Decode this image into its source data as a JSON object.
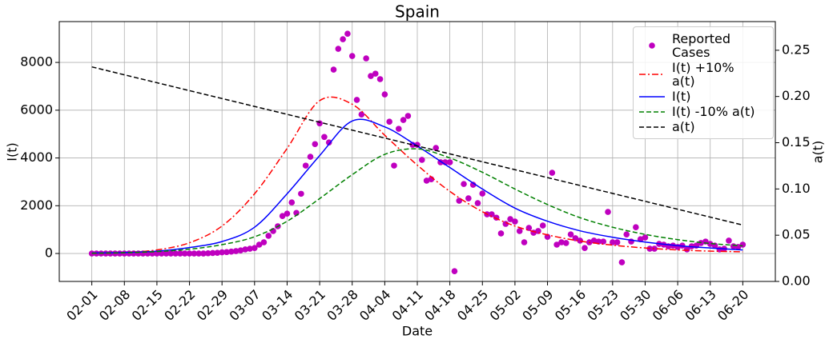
{
  "chart_data": {
    "type": "line",
    "title": "Spain",
    "xlabel": "Date",
    "ylabel": "I(t)",
    "y2label": "a(t)",
    "grid": true,
    "legend": "upper right",
    "x": [
      "02-01",
      "02-02",
      "02-03",
      "02-04",
      "02-05",
      "02-06",
      "02-07",
      "02-08",
      "02-09",
      "02-10",
      "02-11",
      "02-12",
      "02-13",
      "02-14",
      "02-15",
      "02-16",
      "02-17",
      "02-18",
      "02-19",
      "02-20",
      "02-21",
      "02-22",
      "02-23",
      "02-24",
      "02-25",
      "02-26",
      "02-27",
      "02-28",
      "02-29",
      "03-01",
      "03-02",
      "03-03",
      "03-04",
      "03-05",
      "03-06",
      "03-07",
      "03-08",
      "03-09",
      "03-10",
      "03-11",
      "03-12",
      "03-13",
      "03-14",
      "03-15",
      "03-16",
      "03-17",
      "03-18",
      "03-19",
      "03-20",
      "03-21",
      "03-22",
      "03-23",
      "03-24",
      "03-25",
      "03-26",
      "03-27",
      "03-28",
      "03-29",
      "03-30",
      "03-31",
      "04-01",
      "04-02",
      "04-03",
      "04-04",
      "04-05",
      "04-06",
      "04-07",
      "04-08",
      "04-09",
      "04-10",
      "04-11",
      "04-12",
      "04-13",
      "04-14",
      "04-15",
      "04-16",
      "04-17",
      "04-18",
      "04-19",
      "04-20",
      "04-21",
      "04-22",
      "04-23",
      "04-24",
      "04-25",
      "04-26",
      "04-27",
      "04-28",
      "04-29",
      "04-30",
      "05-01",
      "05-02",
      "05-03",
      "05-04",
      "05-05",
      "05-06",
      "05-07",
      "05-08",
      "05-09",
      "05-10",
      "05-11",
      "05-12",
      "05-13",
      "05-14",
      "05-15",
      "05-16",
      "05-17",
      "05-18",
      "05-19",
      "05-20",
      "05-21",
      "05-22",
      "05-23",
      "05-24",
      "05-25",
      "05-26",
      "05-27",
      "05-28",
      "05-29",
      "05-30",
      "05-31",
      "06-01",
      "06-02",
      "06-03",
      "06-04",
      "06-05",
      "06-06",
      "06-07",
      "06-08",
      "06-09",
      "06-10",
      "06-11",
      "06-12",
      "06-13",
      "06-14",
      "06-15",
      "06-16",
      "06-17",
      "06-18",
      "06-19",
      "06-20"
    ],
    "xticks": [
      "02-01",
      "02-08",
      "02-15",
      "02-22",
      "02-29",
      "03-07",
      "03-14",
      "03-21",
      "03-28",
      "04-04",
      "04-11",
      "04-18",
      "04-25",
      "05-02",
      "05-09",
      "05-16",
      "05-23",
      "05-30",
      "06-06",
      "06-13",
      "06-20"
    ],
    "ylim": [
      -1170,
      9710
    ],
    "yticks": [
      0,
      2000,
      4000,
      6000,
      8000
    ],
    "y2lim": [
      0,
      0.281
    ],
    "y2ticks": [
      {
        "value": 0,
        "label": "0.00"
      },
      {
        "value": 0.05,
        "label": "0.05"
      },
      {
        "value": 0.1,
        "label": "0.10"
      },
      {
        "value": 0.15,
        "label": "0.15"
      },
      {
        "value": 0.2,
        "label": "0.20"
      },
      {
        "value": 0.25,
        "label": "0.25"
      }
    ],
    "series": [
      {
        "name": "Reported Cases",
        "type": "scatter",
        "color": "#bf00bf",
        "values": [
          0,
          0,
          0,
          0,
          0,
          0,
          0,
          0,
          0,
          0,
          0,
          0,
          0,
          0,
          0,
          0,
          0,
          0,
          0,
          0,
          0,
          0,
          0,
          0,
          0,
          10,
          20,
          30,
          50,
          60,
          80,
          100,
          130,
          170,
          200,
          230,
          370,
          470,
          740,
          940,
          1140,
          1570,
          1670,
          2140,
          1700,
          2500,
          3680,
          4050,
          4580,
          5450,
          4880,
          4650,
          7700,
          8570,
          8970,
          9200,
          8270,
          6430,
          5820,
          8170,
          7430,
          7530,
          7300,
          6660,
          5520,
          3680,
          5220,
          5590,
          5760,
          4550,
          4550,
          3920,
          3050,
          3110,
          4420,
          3820,
          3820,
          3820,
          -740,
          2210,
          2910,
          2310,
          2880,
          2110,
          2510,
          1640,
          1640,
          1500,
          840,
          1240,
          1440,
          1340,
          940,
          470,
          1070,
          870,
          940,
          1170,
          700,
          3380,
          370,
          470,
          440,
          800,
          640,
          540,
          230,
          470,
          540,
          500,
          500,
          1740,
          470,
          470,
          -370,
          800,
          500,
          1100,
          600,
          670,
          200,
          200,
          400,
          370,
          300,
          330,
          270,
          330,
          170,
          300,
          330,
          440,
          500,
          400,
          330,
          170,
          200,
          540,
          300,
          270,
          370
        ]
      },
      {
        "name": "I(t) +10% a(t)",
        "type": "line",
        "color": "#ff0000",
        "dash": "dashdot",
        "x": [
          "02-01",
          "02-08",
          "02-15",
          "02-22",
          "02-29",
          "03-07",
          "03-14",
          "03-21",
          "03-28",
          "04-04",
          "04-11",
          "04-18",
          "04-25",
          "05-02",
          "05-09",
          "05-16",
          "05-23",
          "05-30",
          "06-06",
          "06-13",
          "06-20"
        ],
        "values": [
          10,
          40,
          150,
          450,
          1150,
          2500,
          4400,
          6400,
          6250,
          4950,
          3700,
          2600,
          1750,
          1150,
          780,
          520,
          350,
          230,
          150,
          100,
          70
        ]
      },
      {
        "name": "I(t)",
        "type": "line",
        "color": "#0000ff",
        "dash": "solid",
        "x": [
          "02-01",
          "02-08",
          "02-15",
          "02-22",
          "02-29",
          "03-07",
          "03-14",
          "03-21",
          "03-28",
          "04-04",
          "04-11",
          "04-18",
          "04-25",
          "05-02",
          "05-09",
          "05-16",
          "05-23",
          "05-30",
          "06-06",
          "06-13",
          "06-20"
        ],
        "values": [
          20,
          40,
          100,
          250,
          500,
          1100,
          2500,
          4100,
          5550,
          5300,
          4500,
          3600,
          2700,
          1900,
          1350,
          950,
          680,
          480,
          330,
          230,
          150
        ]
      },
      {
        "name": "I(t) -10% a(t)",
        "type": "line",
        "color": "#008000",
        "dash": "dashed",
        "x": [
          "02-01",
          "02-08",
          "02-15",
          "02-22",
          "02-29",
          "03-07",
          "03-14",
          "03-21",
          "03-28",
          "04-04",
          "04-11",
          "04-18",
          "04-25",
          "05-02",
          "05-09",
          "05-16",
          "05-23",
          "05-30",
          "06-06",
          "06-13",
          "06-20"
        ],
        "values": [
          10,
          30,
          80,
          180,
          370,
          700,
          1350,
          2300,
          3300,
          4150,
          4380,
          4000,
          3400,
          2700,
          2050,
          1500,
          1100,
          800,
          580,
          420,
          320
        ]
      },
      {
        "name": "a(t)",
        "type": "line",
        "color": "#000000",
        "dash": "dashed",
        "axis": "y2",
        "x": [
          "02-01",
          "06-20"
        ],
        "values": [
          0.232,
          0.061
        ]
      }
    ]
  }
}
